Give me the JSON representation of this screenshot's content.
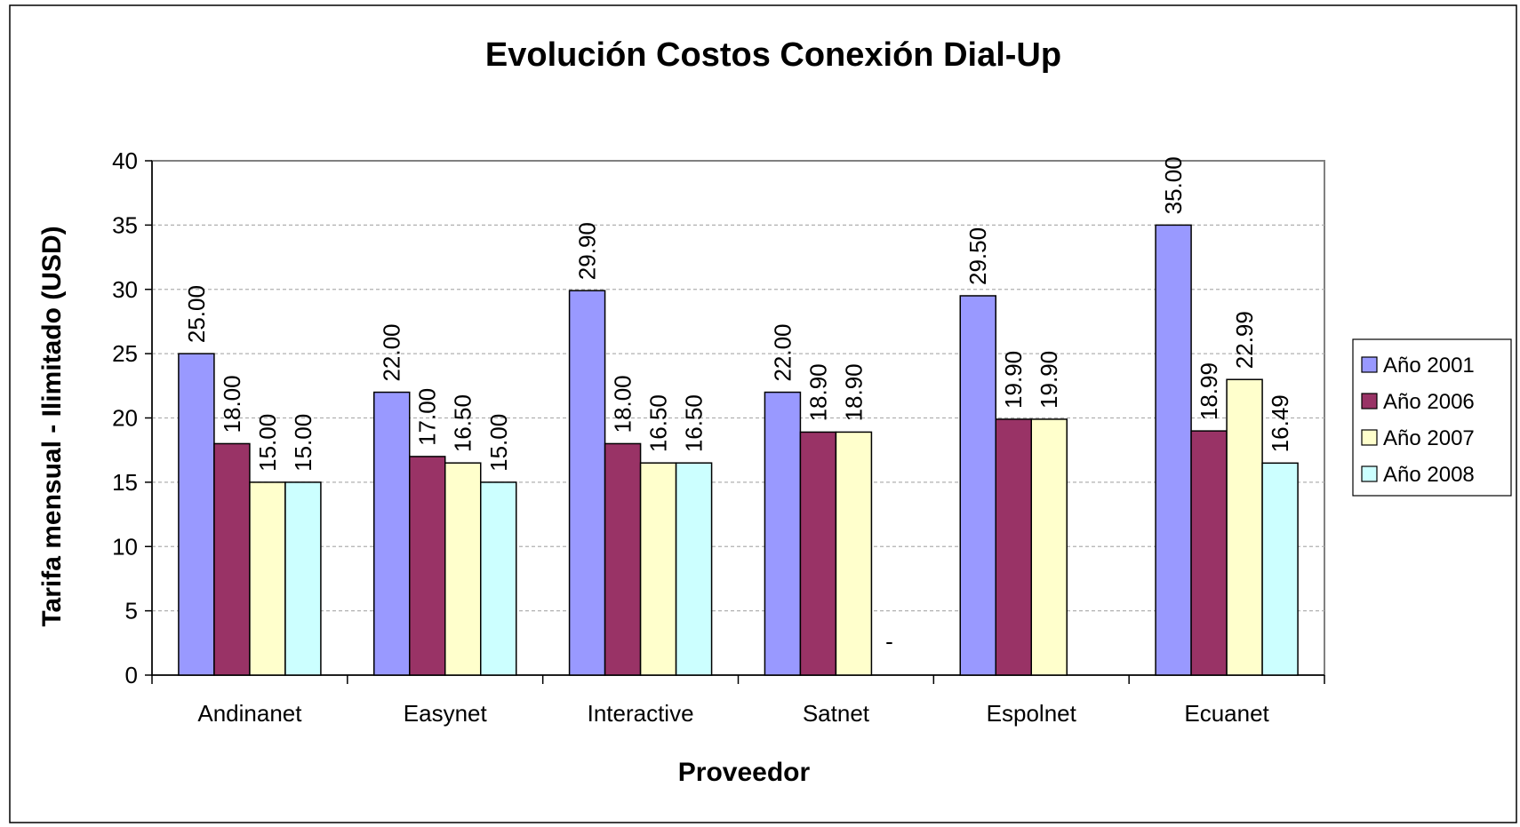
{
  "chart_data": {
    "type": "bar",
    "title": "Evolución Costos Conexión Dial-Up",
    "xlabel": "Proveedor",
    "ylabel": "Tarifa mensual - Ilimitado (USD)",
    "ylim": [
      0,
      40
    ],
    "yticks": [
      "0",
      "5",
      "10",
      "15",
      "20",
      "25",
      "30",
      "35",
      "40"
    ],
    "grid": true,
    "legend_position": "right",
    "categories": [
      "Andinanet",
      "Easynet",
      "Interactive",
      "Satnet",
      "Espolnet",
      "Ecuanet"
    ],
    "series": [
      {
        "name": "Año 2001",
        "color": "#9999FF",
        "values": [
          25.0,
          22.0,
          29.9,
          22.0,
          29.5,
          35.0
        ],
        "labels": [
          "25.00",
          "22.00",
          "29.90",
          "22.00",
          "29.50",
          "35.00"
        ]
      },
      {
        "name": "Año 2006",
        "color": "#993366",
        "values": [
          18.0,
          17.0,
          18.0,
          18.9,
          19.9,
          18.99
        ],
        "labels": [
          "18.00",
          "17.00",
          "18.00",
          "18.90",
          "19.90",
          "18.99"
        ]
      },
      {
        "name": "Año 2007",
        "color": "#FFFFCC",
        "values": [
          15.0,
          16.5,
          16.5,
          18.9,
          19.9,
          22.99
        ],
        "labels": [
          "15.00",
          "16.50",
          "16.50",
          "18.90",
          "19.90",
          "22.99"
        ]
      },
      {
        "name": "Año 2008",
        "color": "#CCFFFF",
        "values": [
          15.0,
          15.0,
          16.5,
          0,
          null,
          16.49
        ],
        "labels": [
          "15.00",
          "15.00",
          "16.50",
          "-",
          "",
          "16.49"
        ]
      }
    ]
  }
}
